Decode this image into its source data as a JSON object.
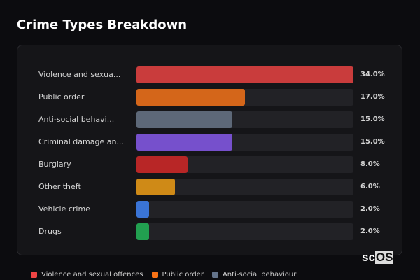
{
  "title": "Crime Types Breakdown",
  "logo": {
    "prefix": "sc",
    "box": "OS"
  },
  "chart_data": {
    "type": "bar",
    "orientation": "horizontal",
    "title": "Crime Types Breakdown",
    "xlim": [
      0,
      34
    ],
    "categories": [
      "Violence and sexua...",
      "Public order",
      "Anti-social behavi...",
      "Criminal damage an...",
      "Burglary",
      "Other theft",
      "Vehicle crime",
      "Drugs"
    ],
    "values": [
      34.0,
      17.0,
      15.0,
      15.0,
      8.0,
      6.0,
      2.0,
      2.0
    ],
    "value_labels": [
      "34.0%",
      "17.0%",
      "15.0%",
      "15.0%",
      "8.0%",
      "6.0%",
      "2.0%",
      "2.0%"
    ],
    "colors": [
      "#c93c3c",
      "#d4661a",
      "#5d6878",
      "#7650cc",
      "#b82626",
      "#cf8a17",
      "#3a74d6",
      "#22a050"
    ],
    "legend": [
      {
        "label": "Violence and sexual offences",
        "color": "#ef4444"
      },
      {
        "label": "Public order",
        "color": "#f97316"
      },
      {
        "label": "Anti-social behaviour",
        "color": "#64748b"
      }
    ],
    "legend_position": "bottom"
  }
}
